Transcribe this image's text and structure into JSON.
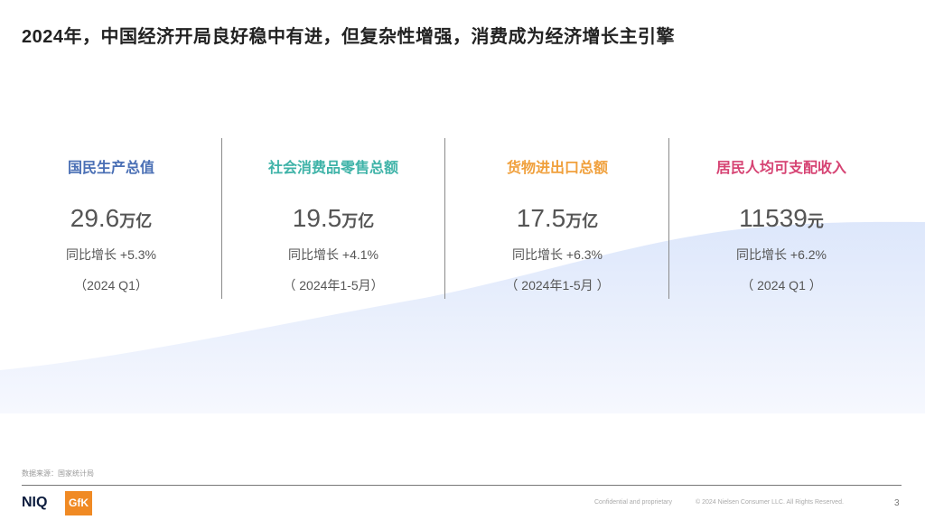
{
  "slide": {
    "title": "2024年，中国经济开局良好稳中有进，但复杂性增强，消费成为经济增长主引擎",
    "metrics": [
      {
        "label": "国民生产总值",
        "value": "29.6",
        "unit": "万亿",
        "growth": "同比增长 +5.3%",
        "period": "（2024 Q1）",
        "color": "#4a6fb5"
      },
      {
        "label": "社会消费品零售总额",
        "value": "19.5",
        "unit": "万亿",
        "growth": "同比增长 +4.1%",
        "period": "（ 2024年1-5月）",
        "color": "#3fb3a8"
      },
      {
        "label": "货物进出口总额",
        "value": "17.5",
        "unit": "万亿",
        "growth": "同比增长 +6.3%",
        "period": "（ 2024年1-5月 ）",
        "color": "#f0a03c"
      },
      {
        "label": "居民人均可支配收入",
        "value": "11539",
        "unit": "元",
        "growth": "同比增长 +6.2%",
        "period": "（ 2024 Q1 ）",
        "color": "#d64373"
      }
    ],
    "source": "数据来源：国家统计局"
  },
  "footer": {
    "niq_logo": "NIQ",
    "gfk_logo": "GfK",
    "confidential": "Confidential and proprietary",
    "copyright": "© 2024 Nielsen Consumer LLC. All Rights Reserved.",
    "page_number": "3"
  }
}
